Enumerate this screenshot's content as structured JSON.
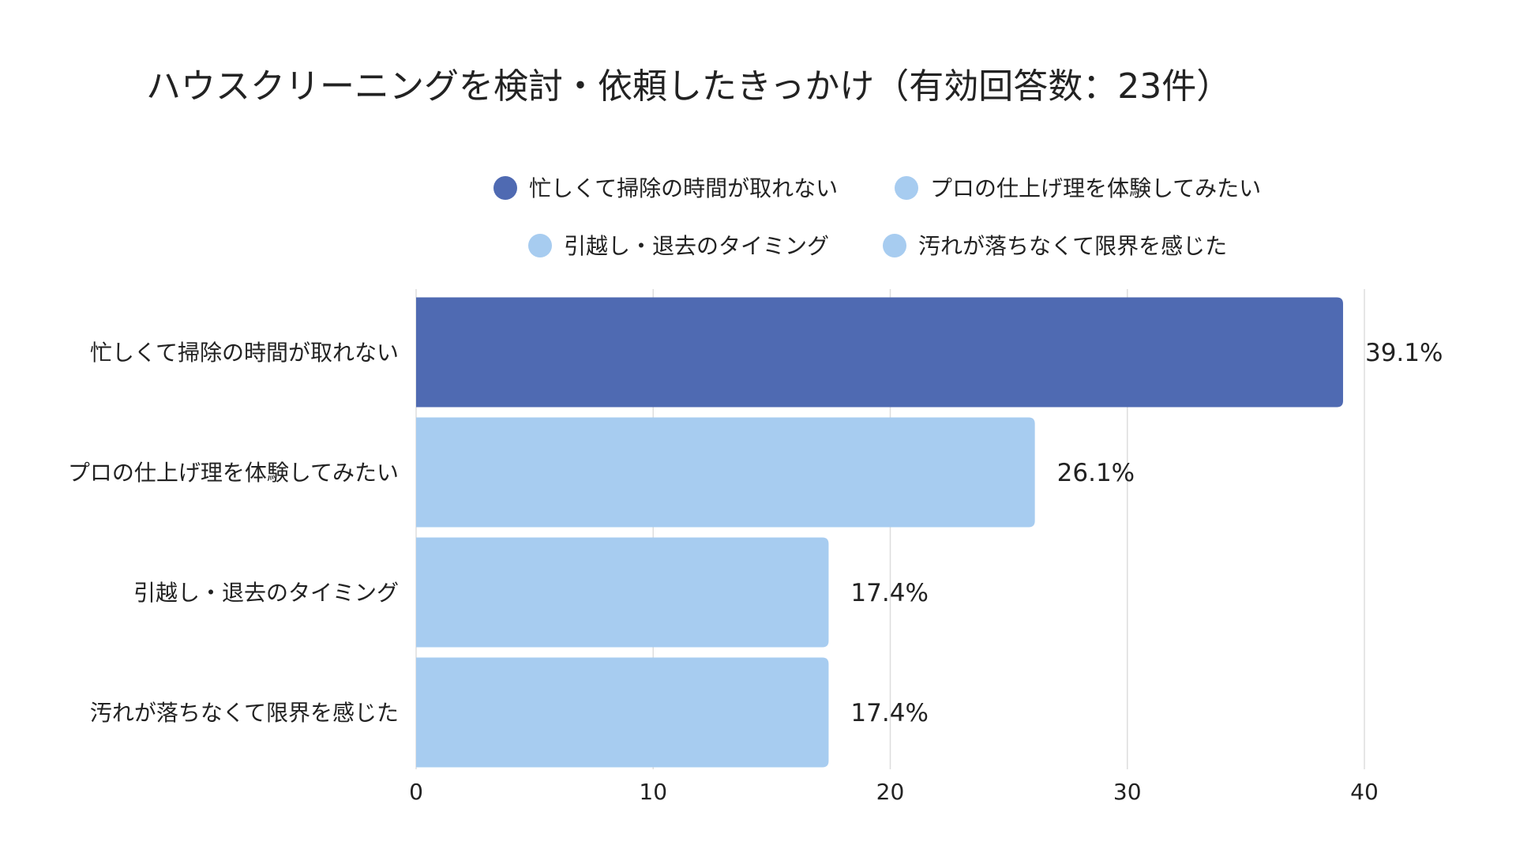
{
  "chart_data": {
    "type": "bar",
    "orientation": "horizontal",
    "title": "ハウスクリーニングを検討・依頼したきっかけ（有効回答数：23件）",
    "categories": [
      "忙しくて掃除の時間が取れない",
      "プロの仕上げ理を体験してみたい",
      "引越し・退去のタイミング",
      "汚れが落ちなくて限界を感じた"
    ],
    "values": [
      39.1,
      26.1,
      17.4,
      17.4
    ],
    "value_labels": [
      "39.1%",
      "26.1%",
      "17.4%",
      "17.4%"
    ],
    "colors": [
      "#4F6AB2",
      "#A7CCF0",
      "#A7CCF0",
      "#A7CCF0"
    ],
    "legend": [
      "忙しくて掃除の時間が取れない",
      "プロの仕上げ理を体験してみたい",
      "引越し・退去のタイミング",
      "汚れが落ちなくて限界を感じた"
    ],
    "legend_position": "top",
    "xlim": [
      0,
      40
    ],
    "xticks": [
      0,
      10,
      20,
      30,
      40
    ],
    "xtick_labels": [
      "0",
      "10",
      "20",
      "30",
      "40"
    ],
    "grid": true,
    "xlabel": "",
    "ylabel": ""
  }
}
